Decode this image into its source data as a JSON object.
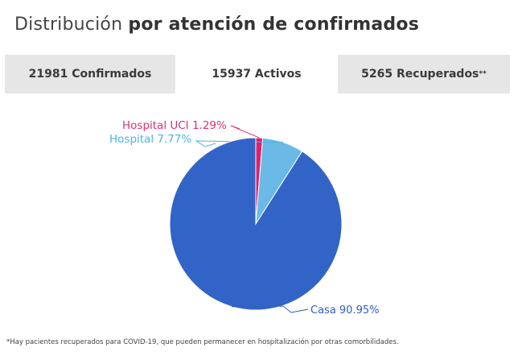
{
  "header": {
    "title_regular": "Distribución",
    "title_bold": "por atención de confirmados"
  },
  "tabs": [
    {
      "label": "21981 Confirmados"
    },
    {
      "label": "15937 Activos"
    },
    {
      "label": "5265 Recuperados",
      "suffix": "**"
    }
  ],
  "footnote": "*Hay pacientes recuperados para COVID-19, que pueden permanecer en hospitalización por otras comorbilidades.",
  "chart_data": {
    "type": "pie",
    "slices": [
      {
        "label": "Hospital UCI 1.29%",
        "value": 1.29,
        "color": "#d9236c",
        "text_color": "#e03070"
      },
      {
        "label": "Hospital 7.77%",
        "value": 7.77,
        "color": "#6ab9e6",
        "text_color": "#4fb3e3"
      },
      {
        "label": "Casa 90.95%",
        "value": 90.95,
        "color": "#3264c8",
        "text_color": "#3060c0"
      }
    ]
  }
}
